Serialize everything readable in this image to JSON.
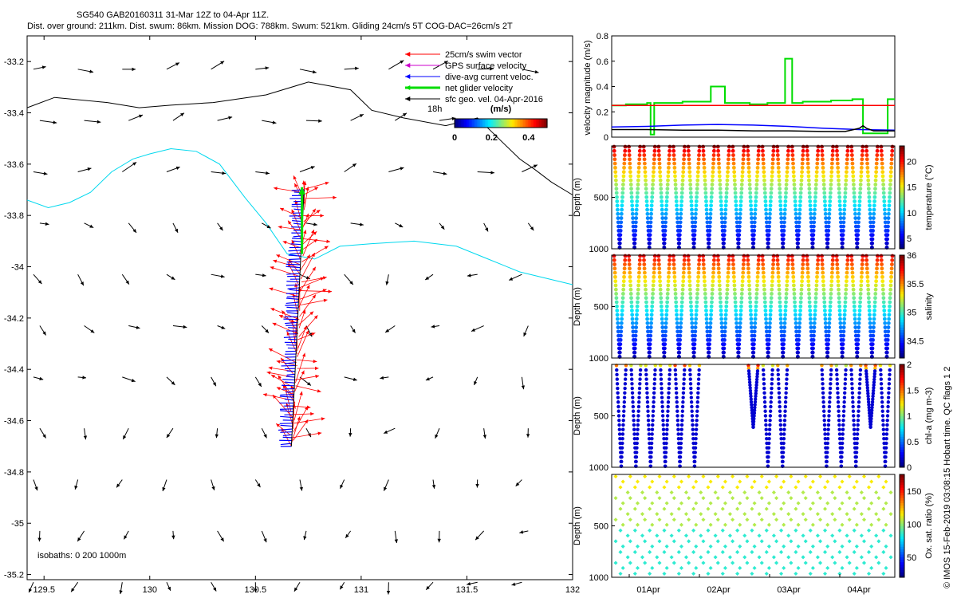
{
  "header": {
    "line1": "SG540 GAB20160311 31-Mar 12Z to 04-Apr 11Z.",
    "line2": "Dist. over ground: 211km. Dist. swum: 86km. Mission DOG: 788km. Swum: 521km. Gliding 24cm/s 5T COG-DAC=26cm/s 2T"
  },
  "copyright": "© IMOS 15-Feb-2019 03:08:15 Hobart time. QC flags 1  2",
  "colors": {
    "swim": "#ff0000",
    "gps": "#cc00cc",
    "dac": "#0000ff",
    "net": "#00dd00",
    "geo": "#000000",
    "isobath_deep": "#00d8ee",
    "threshold": "#ff0000"
  },
  "chart_data": [
    {
      "type": "vector-map",
      "xlim": [
        129.42,
        132.0
      ],
      "ylim": [
        -35.22,
        -33.1
      ],
      "xticks": [
        "129.5",
        "130",
        "130.5",
        "131",
        "131.5",
        "132"
      ],
      "yticks": [
        "-33.2",
        "-33.4",
        "-33.6",
        "-33.8",
        "-34",
        "-34.2",
        "-34.4",
        "-34.6",
        "-34.8",
        "-35",
        "-35.2"
      ],
      "legend": [
        {
          "key": "swim",
          "label": "25cm/s swim vector"
        },
        {
          "key": "gps",
          "label": "GPS surface velocity"
        },
        {
          "key": "dac",
          "label": "dive-avg current veloc."
        },
        {
          "key": "net",
          "label": "net glider velocity"
        },
        {
          "key": "geo",
          "label": "sfc geo. vel. 04-Apr-2016"
        }
      ],
      "colorbar": {
        "unit": "(m/s)",
        "ticks": [
          "0",
          "0.2",
          "0.4"
        ]
      },
      "annotations": {
        "time_label": "18h",
        "isobaths": "isobaths: 0   200   1000m"
      },
      "track": {
        "start": [
          130.73,
          -33.7
        ],
        "end": [
          130.67,
          -34.7
        ]
      },
      "isobath_200m": [
        [
          129.42,
          -33.38
        ],
        [
          129.55,
          -33.34
        ],
        [
          129.8,
          -33.36
        ],
        [
          129.95,
          -33.38
        ],
        [
          130.1,
          -33.37
        ],
        [
          130.3,
          -33.36
        ],
        [
          130.55,
          -33.33
        ],
        [
          130.75,
          -33.28
        ],
        [
          130.95,
          -33.31
        ],
        [
          131.05,
          -33.39
        ],
        [
          131.2,
          -33.42
        ],
        [
          131.4,
          -33.45
        ],
        [
          131.55,
          -33.42
        ],
        [
          131.65,
          -33.5
        ],
        [
          131.75,
          -33.58
        ],
        [
          131.82,
          -33.62
        ],
        [
          131.9,
          -33.67
        ],
        [
          132.0,
          -33.72
        ]
      ],
      "isobath_1000m": [
        [
          129.42,
          -33.74
        ],
        [
          129.52,
          -33.77
        ],
        [
          129.62,
          -33.75
        ],
        [
          129.72,
          -33.71
        ],
        [
          129.82,
          -33.63
        ],
        [
          129.92,
          -33.58
        ],
        [
          130.0,
          -33.56
        ],
        [
          130.1,
          -33.54
        ],
        [
          130.22,
          -33.55
        ],
        [
          130.33,
          -33.6
        ],
        [
          130.45,
          -33.73
        ],
        [
          130.55,
          -33.83
        ],
        [
          130.65,
          -33.95
        ],
        [
          130.78,
          -33.97
        ],
        [
          130.9,
          -33.92
        ],
        [
          131.05,
          -33.91
        ],
        [
          131.25,
          -33.9
        ],
        [
          131.45,
          -33.92
        ],
        [
          131.6,
          -33.97
        ],
        [
          131.75,
          -34.02
        ],
        [
          131.9,
          -34.05
        ],
        [
          132.0,
          -34.07
        ]
      ]
    },
    {
      "type": "line",
      "ylabel": "velocity magnitude (m/s)",
      "ylim": [
        0,
        0.8
      ],
      "yticks": [
        "0",
        "0.2",
        "0.4",
        "0.6",
        "0.8"
      ],
      "xlim": [
        0,
        4
      ],
      "series": [
        {
          "color": "#00dd00",
          "x": [
            0,
            0.2,
            0.2,
            0.5,
            0.5,
            0.55,
            0.55,
            0.6,
            0.6,
            1.0,
            1.0,
            1.4,
            1.4,
            1.6,
            1.6,
            1.95,
            1.95,
            2.2,
            2.2,
            2.45,
            2.45,
            2.55,
            2.55,
            2.7,
            2.7,
            3.1,
            3.1,
            3.4,
            3.4,
            3.55,
            3.55,
            3.9,
            3.9,
            4.0
          ],
          "y": [
            0.25,
            0.25,
            0.26,
            0.26,
            0.27,
            0.27,
            0.02,
            0.02,
            0.27,
            0.27,
            0.28,
            0.28,
            0.4,
            0.4,
            0.27,
            0.27,
            0.26,
            0.26,
            0.27,
            0.27,
            0.62,
            0.62,
            0.27,
            0.27,
            0.28,
            0.28,
            0.29,
            0.29,
            0.3,
            0.3,
            0.03,
            0.03,
            0.3,
            0.3
          ]
        },
        {
          "color": "#ff0000",
          "x": [
            0,
            4
          ],
          "y": [
            0.25,
            0.25
          ]
        },
        {
          "color": "#0000ff",
          "x": [
            0,
            0.5,
            1.0,
            1.5,
            2.0,
            2.5,
            3.0,
            3.5,
            4.0
          ],
          "y": [
            0.08,
            0.085,
            0.095,
            0.1,
            0.095,
            0.085,
            0.07,
            0.06,
            0.055
          ]
        },
        {
          "color": "#000000",
          "x": [
            0,
            0.5,
            1.0,
            1.5,
            2.0,
            2.5,
            3.0,
            3.3,
            3.5,
            3.55,
            3.6,
            3.65,
            3.7,
            4.0
          ],
          "y": [
            0.06,
            0.06,
            0.055,
            0.055,
            0.05,
            0.05,
            0.045,
            0.045,
            0.07,
            0.09,
            0.07,
            0.06,
            0.05,
            0.05
          ]
        }
      ]
    },
    {
      "type": "scatter",
      "name": "temperature",
      "ylabel": "Depth (m)",
      "yticks": [
        "500",
        "1000"
      ],
      "colorbar_label": "temperature (°C)",
      "colorbar_ticks": [
        "5",
        "10",
        "15",
        "20"
      ],
      "dives": 19
    },
    {
      "type": "scatter",
      "name": "salinity",
      "ylabel": "Depth (m)",
      "yticks": [
        "500",
        "1000"
      ],
      "colorbar_label": "salinity",
      "colorbar_ticks": [
        "34.5",
        "35",
        "35.5",
        "36"
      ],
      "dives": 19
    },
    {
      "type": "scatter",
      "name": "chl-a",
      "ylabel": "Depth (m)",
      "yticks": [
        "500",
        "1000"
      ],
      "colorbar_label": "chl-a (mg m-3)",
      "colorbar_ticks": [
        "0",
        "0.5",
        "1",
        "1.5",
        "2"
      ]
    },
    {
      "type": "scatter",
      "name": "oxygen",
      "ylabel": "Depth (m)",
      "yticks": [
        "500",
        "1000"
      ],
      "colorbar_label": "Ox. sat. ratio (%)",
      "colorbar_ticks": [
        "50",
        "100",
        "150"
      ],
      "xticks": [
        "01Apr",
        "02Apr",
        "03Apr",
        "04Apr"
      ]
    }
  ]
}
